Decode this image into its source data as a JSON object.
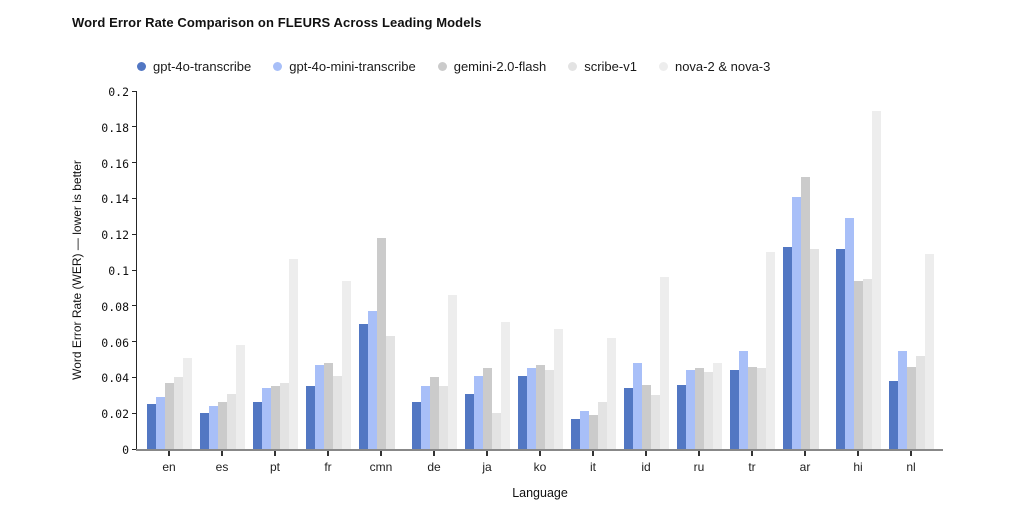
{
  "title": "Word Error Rate Comparison on FLEURS Across Leading Models",
  "chart_data": {
    "type": "bar",
    "title": "Word Error Rate Comparison on FLEURS Across Leading Models",
    "xlabel": "Language",
    "ylabel": "Word Error Rate (WER) — lower is better",
    "ylim": [
      0,
      0.2
    ],
    "grid": false,
    "legend_position": "top",
    "yticks": [
      {
        "value": 0,
        "label": "0"
      },
      {
        "value": 0.02,
        "label": "0.02"
      },
      {
        "value": 0.04,
        "label": "0.04"
      },
      {
        "value": 0.06,
        "label": "0.06"
      },
      {
        "value": 0.08,
        "label": "0.08"
      },
      {
        "value": 0.1,
        "label": "0.1"
      },
      {
        "value": 0.12,
        "label": "0.12"
      },
      {
        "value": 0.14,
        "label": "0.14"
      },
      {
        "value": 0.16,
        "label": "0.16"
      },
      {
        "value": 0.18,
        "label": "0.18"
      },
      {
        "value": 0.2,
        "label": "0.2"
      }
    ],
    "categories": [
      "en",
      "es",
      "pt",
      "fr",
      "cmn",
      "de",
      "ja",
      "ko",
      "it",
      "id",
      "ru",
      "tr",
      "ar",
      "hi",
      "nl"
    ],
    "series": [
      {
        "name": "gpt-4o-transcribe",
        "color": "#5277c3",
        "values": [
          0.025,
          0.02,
          0.026,
          0.035,
          0.07,
          0.026,
          0.031,
          0.041,
          0.017,
          0.034,
          0.036,
          0.044,
          0.113,
          0.112,
          0.038
        ]
      },
      {
        "name": "gpt-4o-mini-transcribe",
        "color": "#a8bff8",
        "values": [
          0.029,
          0.024,
          0.034,
          0.047,
          0.077,
          0.035,
          0.041,
          0.045,
          0.021,
          0.048,
          0.044,
          0.055,
          0.141,
          0.129,
          0.055
        ]
      },
      {
        "name": "gemini-2.0-flash",
        "color": "#cbcbcb",
        "values": [
          0.037,
          0.026,
          0.035,
          0.048,
          0.118,
          0.04,
          0.045,
          0.047,
          0.019,
          0.036,
          0.045,
          0.046,
          0.152,
          0.094,
          0.046
        ]
      },
      {
        "name": "scribe-v1",
        "color": "#e3e3e3",
        "values": [
          0.04,
          0.031,
          0.037,
          0.041,
          0.063,
          0.035,
          0.02,
          0.044,
          0.026,
          0.03,
          0.043,
          0.045,
          0.112,
          0.095,
          0.052
        ]
      },
      {
        "name": "nova-2 & nova-3",
        "color": "#ededed",
        "values": [
          0.051,
          0.058,
          0.106,
          0.094,
          null,
          0.086,
          0.071,
          0.067,
          0.062,
          0.096,
          0.048,
          0.11,
          null,
          0.189,
          0.109
        ]
      }
    ]
  }
}
